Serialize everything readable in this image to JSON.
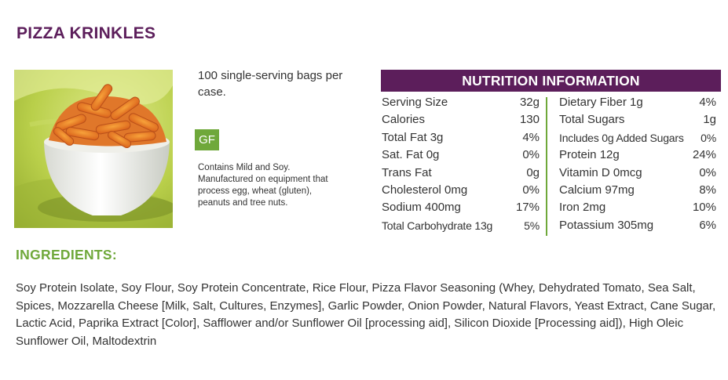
{
  "product": {
    "title": "PIZZA KRINKLES",
    "image_alt": "Bowl of crinkle-cut pizza puffs on a green cloth",
    "description": "100 single-serving bags per case.",
    "badge": "GF",
    "allergen_note": "Contains Mild and Soy. Manufactured on equipment that process egg, wheat (gluten), peanuts and tree nuts."
  },
  "nutrition": {
    "header": "NUTRITION INFORMATION",
    "left": [
      {
        "label": "Serving Size",
        "value": "32g"
      },
      {
        "label": "Calories",
        "value": "130"
      },
      {
        "label": "Total Fat 3g",
        "value": "4%"
      },
      {
        "label": "Sat. Fat 0g",
        "value": "0%"
      },
      {
        "label": "Trans Fat",
        "value": "0g"
      },
      {
        "label": "Cholesterol 0mg",
        "value": "0%"
      },
      {
        "label": "Sodium 400mg",
        "value": "17%"
      },
      {
        "label": "Total Carbohydrate 13g",
        "value": "5%"
      }
    ],
    "right": [
      {
        "label": "Dietary Fiber 1g",
        "value": "4%"
      },
      {
        "label": "Total Sugars",
        "value": "1g"
      },
      {
        "label": "Includes 0g Added Sugars",
        "value": "0%"
      },
      {
        "label": "Protein 12g",
        "value": "24%"
      },
      {
        "label": "Vitamin D 0mcg",
        "value": "0%"
      },
      {
        "label": "Calcium 97mg",
        "value": "8%"
      },
      {
        "label": "Iron 2mg",
        "value": "10%"
      },
      {
        "label": "Potassium 305mg",
        "value": "6%"
      }
    ]
  },
  "ingredients": {
    "heading": "INGREDIENTS:",
    "text": "Soy Protein Isolate, Soy Flour, Soy Protein Concentrate, Rice Flour, Pizza Flavor Seasoning (Whey, Dehydrated Tomato, Sea Salt, Spices, Mozzarella Cheese [Milk, Salt, Cultures, Enzymes], Garlic Powder, Onion Powder, Natural Flavors, Yeast Extract, Cane Sugar, Lactic Acid, Paprika Extract [Color], Safflower and/or Sunflower Oil [processing aid], Silicon Dioxide [Processing aid]), High Oleic Sunflower Oil, Maltodextrin"
  },
  "colors": {
    "title_purple": "#5c1e5b",
    "accent_green": "#6fa83a",
    "body_text": "#333333"
  }
}
